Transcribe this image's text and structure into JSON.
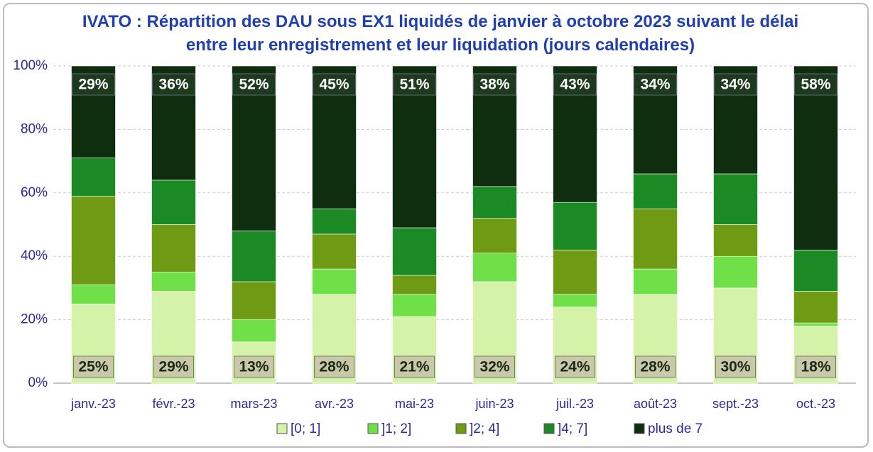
{
  "chart_data": {
    "type": "stacked_bar",
    "title": "IVATO : Répartition des DAU sous EX1 liquidés de janvier à octobre 2023 suivant le délai entre leur enregistrement et leur liquidation (jours calendaires)",
    "categories": [
      "janv.-23",
      "févr.-23",
      "mars-23",
      "avr.-23",
      "mai-23",
      "juin-23",
      "juil.-23",
      "août-23",
      "sept.-23",
      "oct.-23"
    ],
    "series": [
      {
        "name": "[0; 1]",
        "color": "#d4f2a8",
        "values": [
          25,
          29,
          13,
          28,
          21,
          32,
          24,
          28,
          30,
          18
        ],
        "value_labels": [
          "25%",
          "29%",
          "13%",
          "28%",
          "21%",
          "32%",
          "24%",
          "28%",
          "30%",
          "18%"
        ]
      },
      {
        "name": "]1; 2]",
        "color": "#6fe048",
        "values": [
          6,
          6,
          7,
          8,
          7,
          9,
          4,
          8,
          10,
          1
        ]
      },
      {
        "name": "]2; 4]",
        "color": "#6f9a14",
        "values": [
          28,
          15,
          12,
          11,
          6,
          11,
          14,
          19,
          10,
          10
        ]
      },
      {
        "name": "]4; 7]",
        "color": "#1b8a24",
        "values": [
          12,
          14,
          16,
          8,
          15,
          10,
          15,
          11,
          16,
          13
        ]
      },
      {
        "name": "plus de 7",
        "color": "#0f2e10",
        "values": [
          29,
          36,
          52,
          45,
          51,
          38,
          43,
          34,
          34,
          58
        ],
        "value_labels": [
          "29%",
          "36%",
          "52%",
          "45%",
          "51%",
          "38%",
          "43%",
          "34%",
          "34%",
          "58%"
        ]
      }
    ],
    "ylim": [
      0,
      100
    ],
    "yticks": [
      {
        "value": 0,
        "label": "0%"
      },
      {
        "value": 20,
        "label": "20%"
      },
      {
        "value": 40,
        "label": "40%"
      },
      {
        "value": 60,
        "label": "60%"
      },
      {
        "value": 80,
        "label": "80%"
      },
      {
        "value": 100,
        "label": "100%"
      }
    ],
    "grid": true,
    "legend": "bottom"
  }
}
